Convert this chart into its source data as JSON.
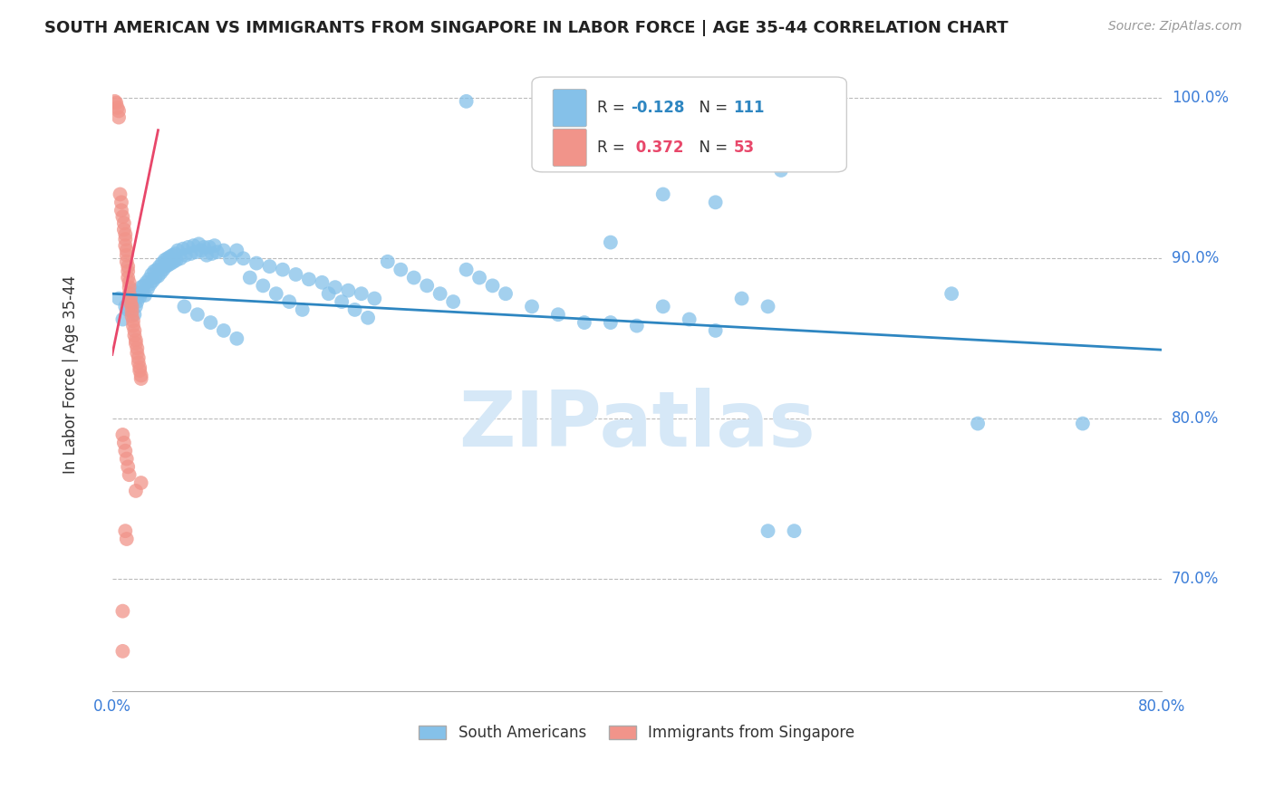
{
  "title": "SOUTH AMERICAN VS IMMIGRANTS FROM SINGAPORE IN LABOR FORCE | AGE 35-44 CORRELATION CHART",
  "source": "Source: ZipAtlas.com",
  "ylabel": "In Labor Force | Age 35-44",
  "right_ytick_labels": [
    "100.0%",
    "90.0%",
    "80.0%",
    "70.0%"
  ],
  "right_ytick_values": [
    1.0,
    0.9,
    0.8,
    0.7
  ],
  "xlim": [
    0.0,
    0.8
  ],
  "ylim": [
    0.63,
    1.025
  ],
  "xtick_values": [
    0.0,
    0.1,
    0.2,
    0.3,
    0.4,
    0.5,
    0.6,
    0.7,
    0.8
  ],
  "xtick_labels": [
    "0.0%",
    "",
    "",
    "",
    "",
    "",
    "",
    "",
    "80.0%"
  ],
  "blue_color": "#85C1E9",
  "pink_color": "#F1948A",
  "blue_line_color": "#2E86C1",
  "pink_line_color": "#E8476A",
  "blue_line_x": [
    0.0,
    0.8
  ],
  "blue_line_y": [
    0.878,
    0.843
  ],
  "pink_line_x": [
    0.0,
    0.035
  ],
  "pink_line_y": [
    0.84,
    0.98
  ],
  "watermark": "ZIPatlas",
  "watermark_color": "#D6E8F7",
  "background_color": "#FFFFFF",
  "grid_color": "#BBBBBB",
  "axis_label_color": "#3B7DD8",
  "title_color": "#222222",
  "blue_N": 111,
  "blue_R": -0.128,
  "pink_N": 53,
  "pink_R": 0.372,
  "blue_scatter": [
    [
      0.005,
      0.875
    ],
    [
      0.008,
      0.862
    ],
    [
      0.01,
      0.87
    ],
    [
      0.012,
      0.868
    ],
    [
      0.013,
      0.875
    ],
    [
      0.015,
      0.872
    ],
    [
      0.016,
      0.88
    ],
    [
      0.017,
      0.865
    ],
    [
      0.018,
      0.87
    ],
    [
      0.019,
      0.873
    ],
    [
      0.02,
      0.878
    ],
    [
      0.021,
      0.876
    ],
    [
      0.022,
      0.882
    ],
    [
      0.023,
      0.879
    ],
    [
      0.024,
      0.883
    ],
    [
      0.025,
      0.877
    ],
    [
      0.026,
      0.885
    ],
    [
      0.027,
      0.881
    ],
    [
      0.028,
      0.887
    ],
    [
      0.029,
      0.884
    ],
    [
      0.03,
      0.89
    ],
    [
      0.031,
      0.886
    ],
    [
      0.032,
      0.892
    ],
    [
      0.033,
      0.888
    ],
    [
      0.034,
      0.893
    ],
    [
      0.035,
      0.889
    ],
    [
      0.036,
      0.895
    ],
    [
      0.037,
      0.891
    ],
    [
      0.038,
      0.897
    ],
    [
      0.039,
      0.893
    ],
    [
      0.04,
      0.899
    ],
    [
      0.041,
      0.895
    ],
    [
      0.042,
      0.9
    ],
    [
      0.043,
      0.896
    ],
    [
      0.044,
      0.901
    ],
    [
      0.045,
      0.897
    ],
    [
      0.046,
      0.902
    ],
    [
      0.047,
      0.898
    ],
    [
      0.048,
      0.903
    ],
    [
      0.049,
      0.899
    ],
    [
      0.05,
      0.905
    ],
    [
      0.052,
      0.9
    ],
    [
      0.054,
      0.906
    ],
    [
      0.056,
      0.902
    ],
    [
      0.058,
      0.907
    ],
    [
      0.06,
      0.903
    ],
    [
      0.062,
      0.908
    ],
    [
      0.064,
      0.904
    ],
    [
      0.066,
      0.909
    ],
    [
      0.068,
      0.905
    ],
    [
      0.07,
      0.907
    ],
    [
      0.072,
      0.902
    ],
    [
      0.074,
      0.907
    ],
    [
      0.076,
      0.903
    ],
    [
      0.078,
      0.908
    ],
    [
      0.08,
      0.904
    ],
    [
      0.085,
      0.905
    ],
    [
      0.09,
      0.9
    ],
    [
      0.095,
      0.905
    ],
    [
      0.1,
      0.9
    ],
    [
      0.11,
      0.897
    ],
    [
      0.12,
      0.895
    ],
    [
      0.13,
      0.893
    ],
    [
      0.14,
      0.89
    ],
    [
      0.15,
      0.887
    ],
    [
      0.16,
      0.885
    ],
    [
      0.17,
      0.882
    ],
    [
      0.18,
      0.88
    ],
    [
      0.19,
      0.878
    ],
    [
      0.2,
      0.875
    ],
    [
      0.055,
      0.87
    ],
    [
      0.065,
      0.865
    ],
    [
      0.075,
      0.86
    ],
    [
      0.085,
      0.855
    ],
    [
      0.095,
      0.85
    ],
    [
      0.105,
      0.888
    ],
    [
      0.115,
      0.883
    ],
    [
      0.125,
      0.878
    ],
    [
      0.135,
      0.873
    ],
    [
      0.145,
      0.868
    ],
    [
      0.165,
      0.878
    ],
    [
      0.175,
      0.873
    ],
    [
      0.185,
      0.868
    ],
    [
      0.195,
      0.863
    ],
    [
      0.21,
      0.898
    ],
    [
      0.22,
      0.893
    ],
    [
      0.23,
      0.888
    ],
    [
      0.24,
      0.883
    ],
    [
      0.25,
      0.878
    ],
    [
      0.26,
      0.873
    ],
    [
      0.27,
      0.893
    ],
    [
      0.28,
      0.888
    ],
    [
      0.29,
      0.883
    ],
    [
      0.3,
      0.878
    ],
    [
      0.32,
      0.87
    ],
    [
      0.34,
      0.865
    ],
    [
      0.36,
      0.86
    ],
    [
      0.38,
      0.86
    ],
    [
      0.4,
      0.858
    ],
    [
      0.42,
      0.87
    ],
    [
      0.44,
      0.862
    ],
    [
      0.46,
      0.855
    ],
    [
      0.48,
      0.875
    ],
    [
      0.5,
      0.87
    ],
    [
      0.27,
      0.998
    ],
    [
      0.33,
      0.999
    ],
    [
      0.38,
      0.91
    ],
    [
      0.42,
      0.94
    ],
    [
      0.46,
      0.935
    ],
    [
      0.51,
      0.955
    ],
    [
      0.52,
      0.73
    ],
    [
      0.5,
      0.73
    ],
    [
      0.64,
      0.878
    ],
    [
      0.66,
      0.797
    ],
    [
      0.74,
      0.797
    ]
  ],
  "pink_scatter": [
    [
      0.002,
      0.998
    ],
    [
      0.003,
      0.997
    ],
    [
      0.004,
      0.994
    ],
    [
      0.005,
      0.992
    ],
    [
      0.005,
      0.988
    ],
    [
      0.006,
      0.94
    ],
    [
      0.007,
      0.935
    ],
    [
      0.007,
      0.93
    ],
    [
      0.008,
      0.926
    ],
    [
      0.009,
      0.922
    ],
    [
      0.009,
      0.918
    ],
    [
      0.01,
      0.915
    ],
    [
      0.01,
      0.912
    ],
    [
      0.01,
      0.908
    ],
    [
      0.011,
      0.905
    ],
    [
      0.011,
      0.902
    ],
    [
      0.011,
      0.898
    ],
    [
      0.012,
      0.895
    ],
    [
      0.012,
      0.892
    ],
    [
      0.012,
      0.888
    ],
    [
      0.013,
      0.885
    ],
    [
      0.013,
      0.882
    ],
    [
      0.013,
      0.878
    ],
    [
      0.014,
      0.875
    ],
    [
      0.014,
      0.872
    ],
    [
      0.015,
      0.87
    ],
    [
      0.015,
      0.867
    ],
    [
      0.015,
      0.864
    ],
    [
      0.016,
      0.861
    ],
    [
      0.016,
      0.858
    ],
    [
      0.017,
      0.855
    ],
    [
      0.017,
      0.852
    ],
    [
      0.018,
      0.849
    ],
    [
      0.018,
      0.847
    ],
    [
      0.019,
      0.844
    ],
    [
      0.019,
      0.841
    ],
    [
      0.02,
      0.838
    ],
    [
      0.02,
      0.835
    ],
    [
      0.021,
      0.832
    ],
    [
      0.021,
      0.83
    ],
    [
      0.022,
      0.827
    ],
    [
      0.022,
      0.825
    ],
    [
      0.008,
      0.79
    ],
    [
      0.009,
      0.785
    ],
    [
      0.01,
      0.78
    ],
    [
      0.011,
      0.775
    ],
    [
      0.012,
      0.77
    ],
    [
      0.013,
      0.765
    ],
    [
      0.022,
      0.76
    ],
    [
      0.018,
      0.755
    ],
    [
      0.01,
      0.73
    ],
    [
      0.011,
      0.725
    ],
    [
      0.008,
      0.68
    ],
    [
      0.008,
      0.655
    ]
  ]
}
